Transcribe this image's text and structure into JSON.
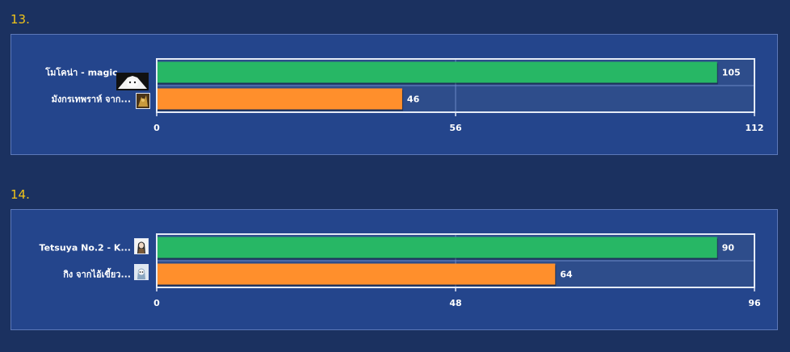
{
  "chart_data": [
    {
      "type": "bar",
      "number": "13.",
      "categories": [
        "โมโคน่า - magic ...",
        "มังกรเทพราห์ จาก..."
      ],
      "values": [
        105,
        46
      ],
      "colors": [
        "#27b765",
        "#ff8f2c"
      ],
      "xlim": [
        0,
        112
      ],
      "ticks": [
        0,
        56,
        112
      ],
      "grid": true
    },
    {
      "type": "bar",
      "number": "14.",
      "categories": [
        "Tetsuya No.2 - K...",
        "กิง จากไอ้เขี้ยว..."
      ],
      "values": [
        90,
        64
      ],
      "colors": [
        "#27b765",
        "#ff8f2c"
      ],
      "xlim": [
        0,
        96
      ],
      "ticks": [
        0,
        48,
        96
      ],
      "grid": true
    }
  ],
  "icons": [
    "avatar-mokona-icon",
    "avatar-dragon-icon",
    "avatar-tetsuya-icon",
    "avatar-king-icon"
  ]
}
